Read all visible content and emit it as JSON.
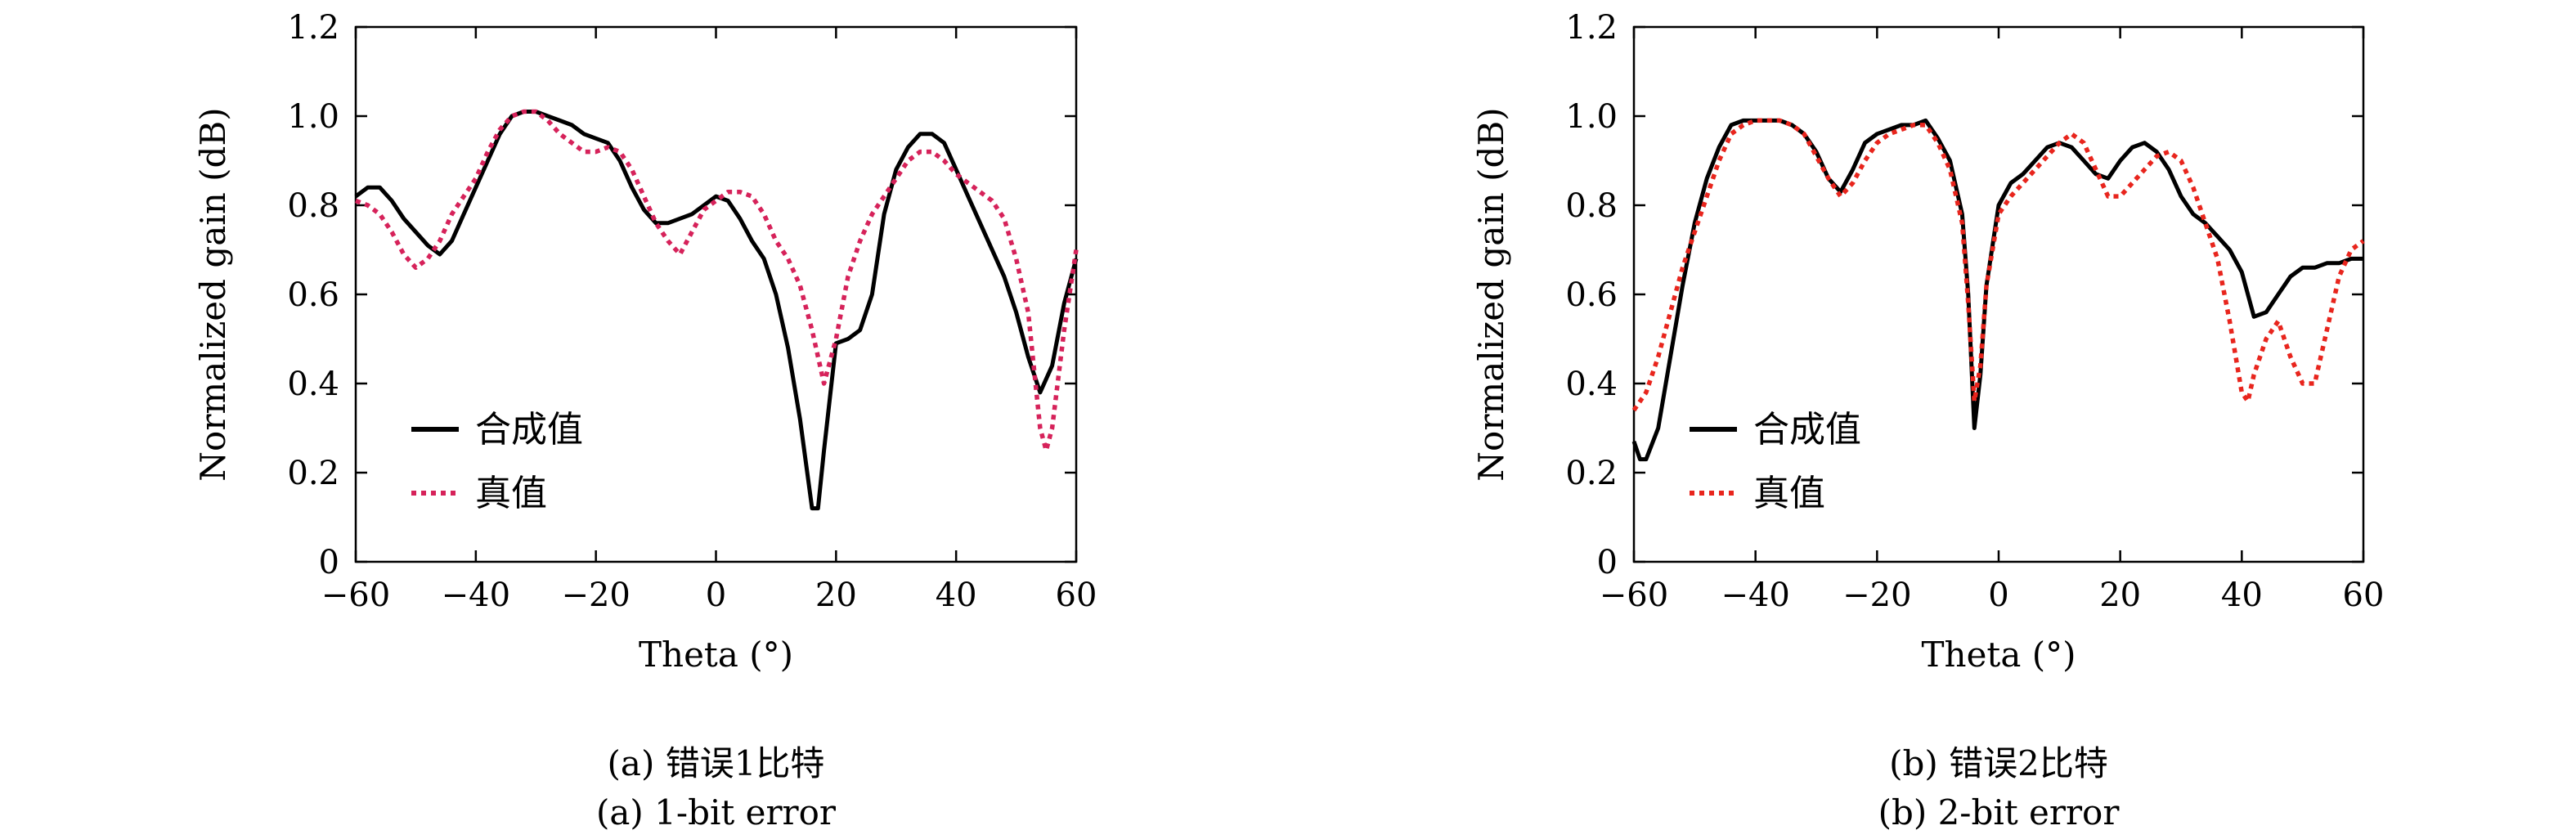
{
  "chart_data": [
    {
      "type": "line",
      "xlabel": "Theta (°)",
      "ylabel": "Normalized gain (dB)",
      "xlim": [
        -60,
        60
      ],
      "ylim": [
        0,
        1.2
      ],
      "xticks": [
        "−60",
        "−40",
        "−20",
        "0",
        "20",
        "40",
        "60"
      ],
      "yticks": [
        "0",
        "0.2",
        "0.4",
        "0.6",
        "0.8",
        "1.0",
        "1.2"
      ],
      "caption_cn": "(a) 错误1比特",
      "caption_en": "(a) 1-bit error",
      "legend_position": "lower-left",
      "series": [
        {
          "name": "合成值",
          "color": "#000000",
          "style": "solid",
          "points": [
            [
              -60,
              0.82
            ],
            [
              -58,
              0.84
            ],
            [
              -56,
              0.84
            ],
            [
              -54,
              0.81
            ],
            [
              -52,
              0.77
            ],
            [
              -50,
              0.74
            ],
            [
              -48,
              0.71
            ],
            [
              -46,
              0.69
            ],
            [
              -44,
              0.72
            ],
            [
              -42,
              0.78
            ],
            [
              -40,
              0.84
            ],
            [
              -38,
              0.9
            ],
            [
              -36,
              0.96
            ],
            [
              -34,
              1.0
            ],
            [
              -32,
              1.01
            ],
            [
              -30,
              1.01
            ],
            [
              -28,
              1.0
            ],
            [
              -26,
              0.99
            ],
            [
              -24,
              0.98
            ],
            [
              -22,
              0.96
            ],
            [
              -20,
              0.95
            ],
            [
              -18,
              0.94
            ],
            [
              -16,
              0.9
            ],
            [
              -14,
              0.84
            ],
            [
              -12,
              0.79
            ],
            [
              -10,
              0.76
            ],
            [
              -8,
              0.76
            ],
            [
              -6,
              0.77
            ],
            [
              -4,
              0.78
            ],
            [
              -2,
              0.8
            ],
            [
              0,
              0.82
            ],
            [
              2,
              0.81
            ],
            [
              4,
              0.77
            ],
            [
              6,
              0.72
            ],
            [
              8,
              0.68
            ],
            [
              10,
              0.6
            ],
            [
              12,
              0.48
            ],
            [
              14,
              0.32
            ],
            [
              16,
              0.12
            ],
            [
              17,
              0.12
            ],
            [
              18,
              0.25
            ],
            [
              20,
              0.49
            ],
            [
              22,
              0.5
            ],
            [
              24,
              0.52
            ],
            [
              26,
              0.6
            ],
            [
              28,
              0.78
            ],
            [
              30,
              0.88
            ],
            [
              32,
              0.93
            ],
            [
              34,
              0.96
            ],
            [
              36,
              0.96
            ],
            [
              38,
              0.94
            ],
            [
              40,
              0.88
            ],
            [
              42,
              0.82
            ],
            [
              44,
              0.76
            ],
            [
              46,
              0.7
            ],
            [
              48,
              0.64
            ],
            [
              50,
              0.56
            ],
            [
              52,
              0.46
            ],
            [
              54,
              0.38
            ],
            [
              56,
              0.44
            ],
            [
              58,
              0.58
            ],
            [
              60,
              0.68
            ]
          ]
        },
        {
          "name": "真值",
          "color": "#d6225a",
          "style": "dotted",
          "points": [
            [
              -60,
              0.81
            ],
            [
              -58,
              0.8
            ],
            [
              -56,
              0.78
            ],
            [
              -54,
              0.74
            ],
            [
              -52,
              0.69
            ],
            [
              -50,
              0.66
            ],
            [
              -48,
              0.68
            ],
            [
              -46,
              0.72
            ],
            [
              -44,
              0.78
            ],
            [
              -42,
              0.82
            ],
            [
              -40,
              0.86
            ],
            [
              -38,
              0.92
            ],
            [
              -36,
              0.97
            ],
            [
              -34,
              1.0
            ],
            [
              -32,
              1.01
            ],
            [
              -30,
              1.01
            ],
            [
              -28,
              0.99
            ],
            [
              -26,
              0.96
            ],
            [
              -24,
              0.94
            ],
            [
              -22,
              0.92
            ],
            [
              -20,
              0.92
            ],
            [
              -18,
              0.93
            ],
            [
              -16,
              0.92
            ],
            [
              -14,
              0.88
            ],
            [
              -12,
              0.82
            ],
            [
              -10,
              0.76
            ],
            [
              -8,
              0.72
            ],
            [
              -6,
              0.69
            ],
            [
              -4,
              0.74
            ],
            [
              -2,
              0.79
            ],
            [
              0,
              0.81
            ],
            [
              2,
              0.83
            ],
            [
              4,
              0.83
            ],
            [
              6,
              0.82
            ],
            [
              8,
              0.78
            ],
            [
              10,
              0.72
            ],
            [
              12,
              0.68
            ],
            [
              14,
              0.62
            ],
            [
              16,
              0.52
            ],
            [
              18,
              0.4
            ],
            [
              20,
              0.5
            ],
            [
              22,
              0.64
            ],
            [
              24,
              0.72
            ],
            [
              26,
              0.78
            ],
            [
              28,
              0.82
            ],
            [
              30,
              0.86
            ],
            [
              32,
              0.9
            ],
            [
              34,
              0.92
            ],
            [
              36,
              0.92
            ],
            [
              38,
              0.9
            ],
            [
              40,
              0.87
            ],
            [
              42,
              0.85
            ],
            [
              44,
              0.83
            ],
            [
              46,
              0.81
            ],
            [
              48,
              0.77
            ],
            [
              50,
              0.68
            ],
            [
              52,
              0.56
            ],
            [
              54,
              0.3
            ],
            [
              55,
              0.25
            ],
            [
              56,
              0.3
            ],
            [
              58,
              0.52
            ],
            [
              60,
              0.7
            ]
          ]
        }
      ]
    },
    {
      "type": "line",
      "xlabel": "Theta (°)",
      "ylabel": "Normalized gain (dB)",
      "xlim": [
        -60,
        60
      ],
      "ylim": [
        0,
        1.2
      ],
      "xticks": [
        "−60",
        "−40",
        "−20",
        "0",
        "20",
        "40",
        "60"
      ],
      "yticks": [
        "0",
        "0.2",
        "0.4",
        "0.6",
        "0.8",
        "1.0",
        "1.2"
      ],
      "caption_cn": "(b) 错误2比特",
      "caption_en": "(b) 2-bit error",
      "legend_position": "lower-left",
      "series": [
        {
          "name": "合成值",
          "color": "#000000",
          "style": "solid",
          "points": [
            [
              -60,
              0.27
            ],
            [
              -59,
              0.23
            ],
            [
              -58,
              0.23
            ],
            [
              -56,
              0.3
            ],
            [
              -54,
              0.46
            ],
            [
              -52,
              0.62
            ],
            [
              -50,
              0.76
            ],
            [
              -48,
              0.86
            ],
            [
              -46,
              0.93
            ],
            [
              -44,
              0.98
            ],
            [
              -42,
              0.99
            ],
            [
              -40,
              0.99
            ],
            [
              -38,
              0.99
            ],
            [
              -36,
              0.99
            ],
            [
              -34,
              0.98
            ],
            [
              -32,
              0.96
            ],
            [
              -30,
              0.92
            ],
            [
              -28,
              0.86
            ],
            [
              -26,
              0.83
            ],
            [
              -24,
              0.88
            ],
            [
              -22,
              0.94
            ],
            [
              -20,
              0.96
            ],
            [
              -18,
              0.97
            ],
            [
              -16,
              0.98
            ],
            [
              -14,
              0.98
            ],
            [
              -12,
              0.99
            ],
            [
              -10,
              0.95
            ],
            [
              -8,
              0.9
            ],
            [
              -6,
              0.78
            ],
            [
              -5,
              0.6
            ],
            [
              -4,
              0.3
            ],
            [
              -3,
              0.42
            ],
            [
              -2,
              0.62
            ],
            [
              0,
              0.8
            ],
            [
              2,
              0.85
            ],
            [
              4,
              0.87
            ],
            [
              6,
              0.9
            ],
            [
              8,
              0.93
            ],
            [
              10,
              0.94
            ],
            [
              12,
              0.93
            ],
            [
              14,
              0.9
            ],
            [
              16,
              0.87
            ],
            [
              18,
              0.86
            ],
            [
              20,
              0.9
            ],
            [
              22,
              0.93
            ],
            [
              24,
              0.94
            ],
            [
              26,
              0.92
            ],
            [
              28,
              0.88
            ],
            [
              30,
              0.82
            ],
            [
              32,
              0.78
            ],
            [
              34,
              0.76
            ],
            [
              36,
              0.73
            ],
            [
              38,
              0.7
            ],
            [
              40,
              0.65
            ],
            [
              42,
              0.55
            ],
            [
              44,
              0.56
            ],
            [
              46,
              0.6
            ],
            [
              48,
              0.64
            ],
            [
              50,
              0.66
            ],
            [
              52,
              0.66
            ],
            [
              54,
              0.67
            ],
            [
              56,
              0.67
            ],
            [
              58,
              0.68
            ],
            [
              60,
              0.68
            ]
          ]
        },
        {
          "name": "真值",
          "color": "#e8251d",
          "style": "dotted",
          "points": [
            [
              -60,
              0.34
            ],
            [
              -58,
              0.38
            ],
            [
              -56,
              0.46
            ],
            [
              -54,
              0.56
            ],
            [
              -52,
              0.66
            ],
            [
              -50,
              0.74
            ],
            [
              -48,
              0.82
            ],
            [
              -46,
              0.9
            ],
            [
              -44,
              0.96
            ],
            [
              -42,
              0.98
            ],
            [
              -40,
              0.99
            ],
            [
              -38,
              0.99
            ],
            [
              -36,
              0.99
            ],
            [
              -34,
              0.98
            ],
            [
              -32,
              0.96
            ],
            [
              -30,
              0.91
            ],
            [
              -28,
              0.86
            ],
            [
              -26,
              0.82
            ],
            [
              -24,
              0.85
            ],
            [
              -22,
              0.9
            ],
            [
              -20,
              0.94
            ],
            [
              -18,
              0.96
            ],
            [
              -16,
              0.97
            ],
            [
              -14,
              0.98
            ],
            [
              -12,
              0.98
            ],
            [
              -10,
              0.94
            ],
            [
              -8,
              0.88
            ],
            [
              -6,
              0.76
            ],
            [
              -5,
              0.58
            ],
            [
              -4,
              0.36
            ],
            [
              -3,
              0.44
            ],
            [
              -2,
              0.62
            ],
            [
              0,
              0.78
            ],
            [
              2,
              0.82
            ],
            [
              4,
              0.85
            ],
            [
              6,
              0.88
            ],
            [
              8,
              0.91
            ],
            [
              10,
              0.94
            ],
            [
              12,
              0.96
            ],
            [
              14,
              0.94
            ],
            [
              16,
              0.88
            ],
            [
              18,
              0.82
            ],
            [
              20,
              0.82
            ],
            [
              22,
              0.85
            ],
            [
              24,
              0.88
            ],
            [
              26,
              0.91
            ],
            [
              28,
              0.92
            ],
            [
              30,
              0.9
            ],
            [
              32,
              0.84
            ],
            [
              34,
              0.76
            ],
            [
              36,
              0.68
            ],
            [
              38,
              0.54
            ],
            [
              40,
              0.38
            ],
            [
              41,
              0.36
            ],
            [
              42,
              0.42
            ],
            [
              44,
              0.5
            ],
            [
              46,
              0.54
            ],
            [
              48,
              0.46
            ],
            [
              50,
              0.4
            ],
            [
              52,
              0.4
            ],
            [
              54,
              0.52
            ],
            [
              56,
              0.64
            ],
            [
              58,
              0.7
            ],
            [
              60,
              0.72
            ]
          ]
        }
      ]
    }
  ]
}
